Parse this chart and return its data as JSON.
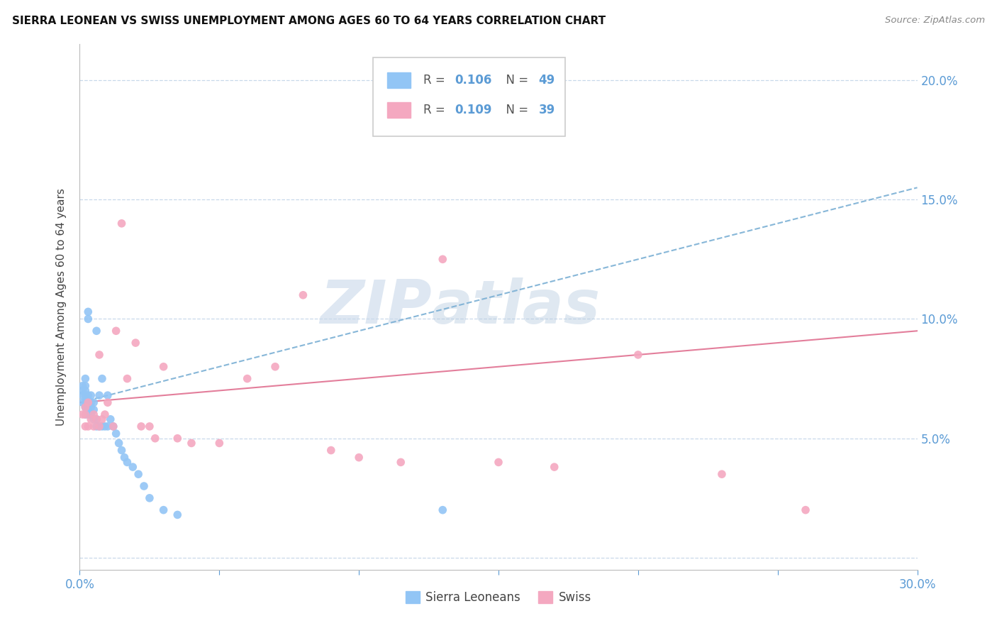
{
  "title": "SIERRA LEONEAN VS SWISS UNEMPLOYMENT AMONG AGES 60 TO 64 YEARS CORRELATION CHART",
  "source": "Source: ZipAtlas.com",
  "ylabel": "Unemployment Among Ages 60 to 64 years",
  "xlim": [
    0.0,
    0.3
  ],
  "ylim": [
    -0.005,
    0.215
  ],
  "xticks": [
    0.0,
    0.05,
    0.1,
    0.15,
    0.2,
    0.25,
    0.3
  ],
  "yticks": [
    0.0,
    0.05,
    0.1,
    0.15,
    0.2
  ],
  "ytick_labels": [
    "",
    "5.0%",
    "10.0%",
    "15.0%",
    "20.0%"
  ],
  "xtick_labels": [
    "0.0%",
    "",
    "",
    "",
    "",
    "",
    "30.0%"
  ],
  "sl_color": "#92c5f5",
  "swiss_color": "#f4a8c0",
  "sl_line_color": "#7aafd4",
  "swiss_line_color": "#e07090",
  "axis_color": "#5b9bd5",
  "grid_color": "#c8d8ea",
  "background_color": "#ffffff",
  "watermark1": "ZIP",
  "watermark2": "atlas",
  "sl_x": [
    0.001,
    0.001,
    0.001,
    0.001,
    0.002,
    0.002,
    0.002,
    0.002,
    0.002,
    0.002,
    0.002,
    0.003,
    0.003,
    0.003,
    0.003,
    0.003,
    0.003,
    0.003,
    0.004,
    0.004,
    0.004,
    0.004,
    0.005,
    0.005,
    0.005,
    0.006,
    0.006,
    0.006,
    0.007,
    0.007,
    0.008,
    0.008,
    0.009,
    0.01,
    0.01,
    0.011,
    0.012,
    0.013,
    0.014,
    0.015,
    0.016,
    0.017,
    0.019,
    0.021,
    0.023,
    0.025,
    0.03,
    0.035,
    0.13
  ],
  "sl_y": [
    0.065,
    0.068,
    0.07,
    0.072,
    0.06,
    0.063,
    0.065,
    0.068,
    0.07,
    0.072,
    0.075,
    0.06,
    0.062,
    0.064,
    0.066,
    0.068,
    0.1,
    0.103,
    0.06,
    0.063,
    0.065,
    0.068,
    0.058,
    0.062,
    0.065,
    0.055,
    0.058,
    0.095,
    0.055,
    0.068,
    0.055,
    0.075,
    0.055,
    0.055,
    0.068,
    0.058,
    0.055,
    0.052,
    0.048,
    0.045,
    0.042,
    0.04,
    0.038,
    0.035,
    0.03,
    0.025,
    0.02,
    0.018,
    0.02
  ],
  "swiss_x": [
    0.001,
    0.002,
    0.002,
    0.002,
    0.003,
    0.003,
    0.004,
    0.005,
    0.005,
    0.006,
    0.007,
    0.007,
    0.008,
    0.009,
    0.01,
    0.012,
    0.013,
    0.015,
    0.017,
    0.02,
    0.022,
    0.025,
    0.027,
    0.03,
    0.035,
    0.04,
    0.05,
    0.06,
    0.07,
    0.08,
    0.09,
    0.1,
    0.115,
    0.13,
    0.15,
    0.17,
    0.2,
    0.23,
    0.26
  ],
  "swiss_y": [
    0.06,
    0.055,
    0.06,
    0.063,
    0.055,
    0.065,
    0.058,
    0.055,
    0.06,
    0.058,
    0.055,
    0.085,
    0.058,
    0.06,
    0.065,
    0.055,
    0.095,
    0.14,
    0.075,
    0.09,
    0.055,
    0.055,
    0.05,
    0.08,
    0.05,
    0.048,
    0.048,
    0.075,
    0.08,
    0.11,
    0.045,
    0.042,
    0.04,
    0.125,
    0.04,
    0.038,
    0.085,
    0.035,
    0.02
  ]
}
